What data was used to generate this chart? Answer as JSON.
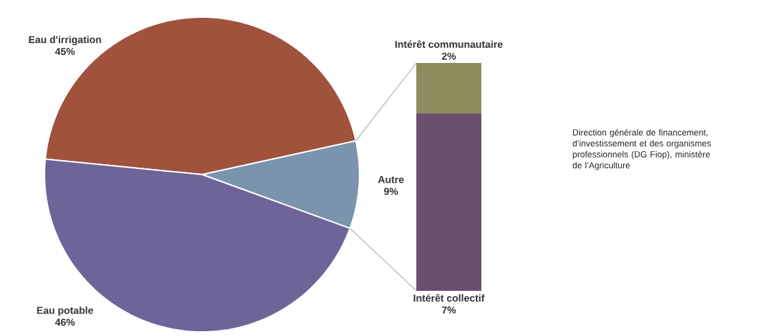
{
  "chart_data": [
    {
      "type": "pie",
      "categories": [
        "Autre",
        "Eau d'irrigation",
        "Eau potable"
      ],
      "values": [
        9,
        45,
        46
      ],
      "value_labels": [
        "9%",
        "45%",
        "46%"
      ],
      "colors": [
        "#7b94ad",
        "#a0523d",
        "#6e6497"
      ]
    },
    {
      "type": "bar",
      "stacked": true,
      "categories": [
        null
      ],
      "series": [
        {
          "name": "Intérêt collectif",
          "color": "#6b4f6e",
          "values": [
            7
          ],
          "value_labels": [
            "7%"
          ]
        },
        {
          "name": "Intérêt communautaire",
          "color": "#8c8c5c",
          "values": [
            2
          ],
          "value_labels": [
            "2%"
          ]
        }
      ],
      "annotations": [
        "Direction générale de financement, d’investissement et des organismes professionnels (DG Fiop), ministère de l’Agriculture"
      ]
    }
  ]
}
